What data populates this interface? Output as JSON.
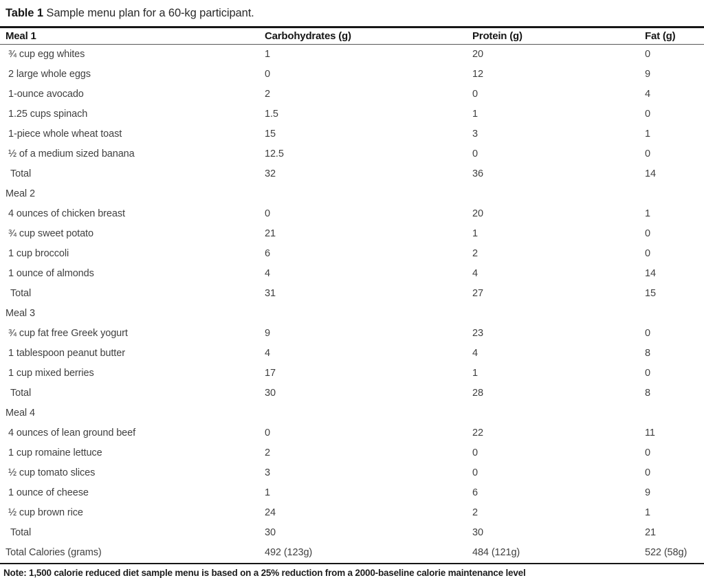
{
  "title": {
    "label": "Table 1",
    "caption": " Sample menu plan for a 60-kg participant."
  },
  "table": {
    "headers": [
      "Meal 1",
      "Carbohydrates (g)",
      "Protein (g)",
      "Fat (g)"
    ],
    "rows": [
      {
        "type": "item",
        "label": "¾ cup egg whites",
        "carbs": "1",
        "protein": "20",
        "fat": "0"
      },
      {
        "type": "item",
        "label": "2 large whole eggs",
        "carbs": "0",
        "protein": "12",
        "fat": "9"
      },
      {
        "type": "item",
        "label": "1-ounce avocado",
        "carbs": "2",
        "protein": "0",
        "fat": "4"
      },
      {
        "type": "item",
        "label": "1.25 cups spinach",
        "carbs": "1.5",
        "protein": "1",
        "fat": "0"
      },
      {
        "type": "item",
        "label": "1-piece whole wheat toast",
        "carbs": "15",
        "protein": "3",
        "fat": "1"
      },
      {
        "type": "item",
        "label": "½ of a medium sized banana",
        "carbs": "12.5",
        "protein": "0",
        "fat": "0"
      },
      {
        "type": "total",
        "label": "Total",
        "carbs": "32",
        "protein": "36",
        "fat": "14"
      },
      {
        "type": "section",
        "label": "Meal 2",
        "carbs": "",
        "protein": "",
        "fat": ""
      },
      {
        "type": "item",
        "label": "4 ounces of chicken breast",
        "carbs": "0",
        "protein": "20",
        "fat": "1"
      },
      {
        "type": "item",
        "label": "¾ cup sweet potato",
        "carbs": "21",
        "protein": "1",
        "fat": "0"
      },
      {
        "type": "item",
        "label": "1 cup broccoli",
        "carbs": "6",
        "protein": "2",
        "fat": "0"
      },
      {
        "type": "item",
        "label": "1 ounce of almonds",
        "carbs": "4",
        "protein": "4",
        "fat": "14"
      },
      {
        "type": "total",
        "label": "Total",
        "carbs": "31",
        "protein": "27",
        "fat": "15"
      },
      {
        "type": "section",
        "label": "Meal 3",
        "carbs": "",
        "protein": "",
        "fat": ""
      },
      {
        "type": "item",
        "label": "¾ cup fat free Greek yogurt",
        "carbs": "9",
        "protein": "23",
        "fat": "0"
      },
      {
        "type": "item",
        "label": "1 tablespoon peanut butter",
        "carbs": "4",
        "protein": "4",
        "fat": "8"
      },
      {
        "type": "item",
        "label": "1 cup mixed berries",
        "carbs": "17",
        "protein": "1",
        "fat": "0"
      },
      {
        "type": "total",
        "label": "Total",
        "carbs": "30",
        "protein": "28",
        "fat": "8"
      },
      {
        "type": "section",
        "label": "Meal 4",
        "carbs": "",
        "protein": "",
        "fat": ""
      },
      {
        "type": "item",
        "label": "4 ounces of lean ground beef",
        "carbs": "0",
        "protein": "22",
        "fat": "11"
      },
      {
        "type": "item",
        "label": "1 cup romaine lettuce",
        "carbs": "2",
        "protein": "0",
        "fat": "0"
      },
      {
        "type": "item",
        "label": "½ cup tomato slices",
        "carbs": "3",
        "protein": "0",
        "fat": "0"
      },
      {
        "type": "item",
        "label": "1 ounce of cheese",
        "carbs": "1",
        "protein": "6",
        "fat": "9"
      },
      {
        "type": "item",
        "label": "½ cup brown rice",
        "carbs": "24",
        "protein": "2",
        "fat": "1"
      },
      {
        "type": "total",
        "label": "Total",
        "carbs": "30",
        "protein": "30",
        "fat": "21"
      },
      {
        "type": "grand",
        "label": "Total Calories (grams)",
        "carbs": "492 (123g)",
        "protein": "484 (121g)",
        "fat": "522 (58g)"
      }
    ]
  },
  "note": "Note: 1,500 calorie reduced diet sample menu is based on a 25% reduction from a 2000-baseline calorie maintenance level"
}
